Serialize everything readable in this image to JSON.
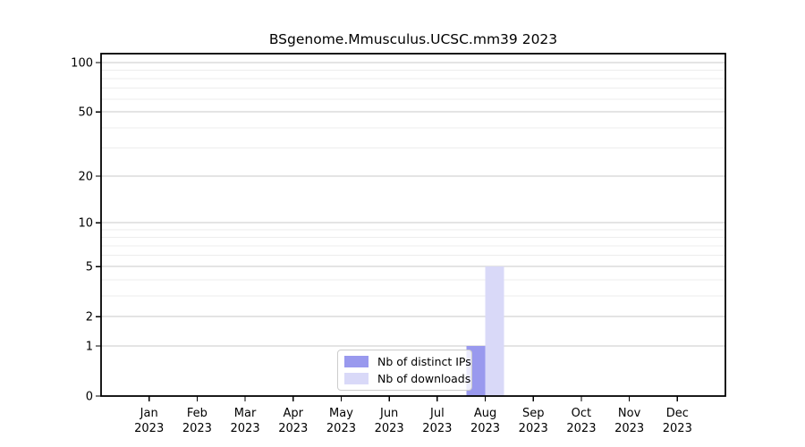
{
  "figure": {
    "title": "BSgenome.Mmusculus.UCSC.mm39 2023",
    "background": "#ffffff"
  },
  "chart_data": {
    "type": "bar",
    "title": "BSgenome.Mmusculus.UCSC.mm39 2023",
    "x_tick_labels_line1": [
      "Jan",
      "Feb",
      "Mar",
      "Apr",
      "May",
      "Jun",
      "Jul",
      "Aug",
      "Sep",
      "Oct",
      "Nov",
      "Dec"
    ],
    "x_tick_labels_line2": [
      "2023",
      "2023",
      "2023",
      "2023",
      "2023",
      "2023",
      "2023",
      "2023",
      "2023",
      "2023",
      "2023",
      "2023"
    ],
    "series": [
      {
        "name": "Nb of distinct IPs",
        "color": "#9999ee",
        "values": [
          0,
          0,
          0,
          0,
          0,
          0,
          0,
          1,
          0,
          0,
          0,
          0
        ]
      },
      {
        "name": "Nb of downloads",
        "color": "#d9d9f8",
        "values": [
          0,
          0,
          0,
          0,
          0,
          0,
          0,
          5,
          0,
          0,
          0,
          0
        ]
      }
    ],
    "y_scale": "log1p",
    "y_ticks": [
      0,
      1,
      2,
      5,
      10,
      20,
      50,
      100
    ],
    "y_minor_ticks": [
      3,
      4,
      6,
      7,
      8,
      9,
      30,
      40,
      60,
      70,
      80,
      90
    ],
    "ylim": [
      0,
      113
    ],
    "grid": true,
    "legend_position": "lower center inside",
    "colors": {
      "major_grid": "#c9c9c9",
      "minor_grid": "#ededed",
      "spine": "#000000",
      "tick": "#000000",
      "tick_label": "#000000"
    }
  }
}
